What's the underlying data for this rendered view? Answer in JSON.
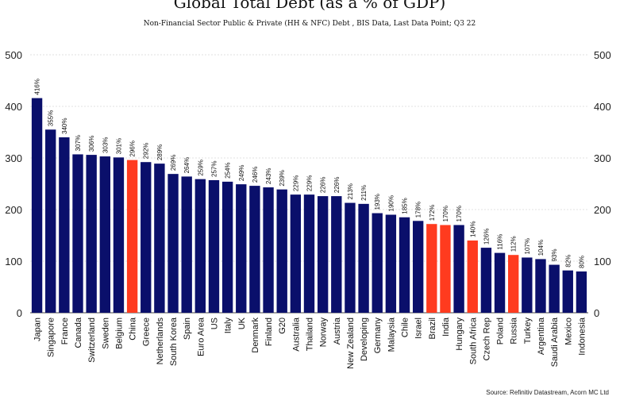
{
  "chart_data": {
    "type": "bar",
    "title": "Global Total Debt (as a % of GDP)",
    "subtitle": "Non-Financial Sector Public & Private (HH & NFC) Debt , BIS Data, Last Data Point; Q3 22",
    "source": "Source: Refinitiv Datastream, Acorn MC Ltd",
    "ylim": [
      0,
      500
    ],
    "yticks": [
      "0",
      "100",
      "200",
      "300",
      "400",
      "500"
    ],
    "grid": true,
    "colors": {
      "default": "#0a0f6b",
      "highlight": "#ff3b1f"
    },
    "categories": [
      "Japan",
      "Singapore",
      "France",
      "Canada",
      "Switzerland",
      "Sweden",
      "Belgium",
      "China",
      "Greece",
      "Netherlands",
      "South Korea",
      "Spain",
      "Euro Area",
      "US",
      "Italy",
      "UK",
      "Denmark",
      "Finland",
      "G20",
      "Australia",
      "Thailand",
      "Norway",
      "Austria",
      "New Zealand",
      "Developing",
      "Germany",
      "Malaysia",
      "Chile",
      "Israel",
      "Brazil",
      "India",
      "Hungary",
      "South Africa",
      "Czech Rep",
      "Poland",
      "Russia",
      "Turkey",
      "Argentina",
      "Saudi Arabia",
      "Mexico",
      "Indonesia"
    ],
    "values": [
      416,
      355,
      340,
      307,
      306,
      303,
      301,
      296,
      292,
      289,
      269,
      264,
      259,
      257,
      254,
      249,
      246,
      243,
      239,
      229,
      229,
      226,
      226,
      213,
      211,
      193,
      190,
      185,
      178,
      172,
      170,
      170,
      140,
      126,
      116,
      112,
      107,
      104,
      93,
      82,
      80
    ],
    "labels": [
      "416%",
      "355%",
      "340%",
      "307%",
      "306%",
      "303%",
      "301%",
      "296%",
      "292%",
      "289%",
      "269%",
      "264%",
      "259%",
      "257%",
      "254%",
      "249%",
      "246%",
      "243%",
      "239%",
      "229%",
      "229%",
      "226%",
      "226%",
      "213%",
      "211%",
      "193%",
      "190%",
      "185%",
      "178%",
      "172%",
      "170%",
      "170%",
      "140%",
      "126%",
      "116%",
      "112%",
      "107%",
      "104%",
      "93%",
      "82%",
      "80%"
    ],
    "highlighted": [
      "China",
      "Brazil",
      "India",
      "South Africa",
      "Russia"
    ]
  }
}
